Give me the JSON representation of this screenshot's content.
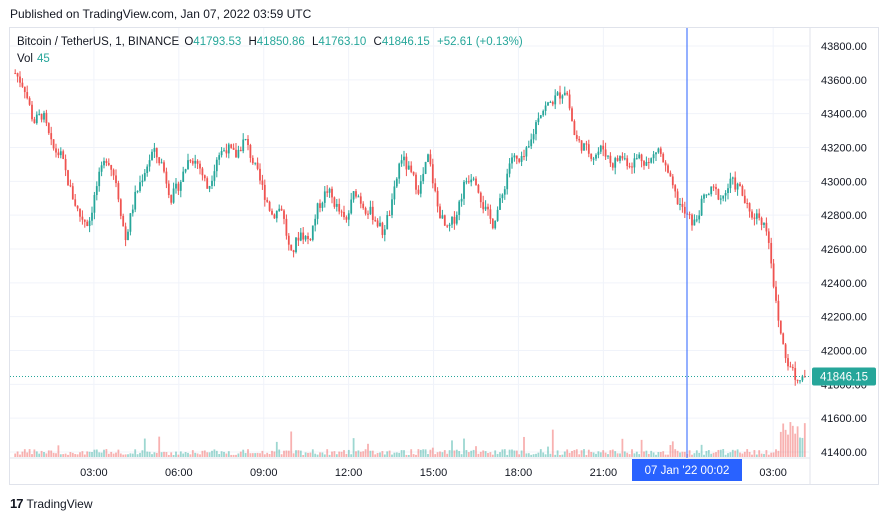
{
  "header": {
    "published": "Published on TradingView.com, Jan 07, 2022 03:59 UTC"
  },
  "legend": {
    "symbol": "Bitcoin / TetherUS, 1, BINANCE",
    "o_label": "O",
    "o_value": "41793.53",
    "h_label": "H",
    "h_value": "41850.86",
    "l_label": "L",
    "l_value": "41763.10",
    "c_label": "C",
    "c_value": "41846.15",
    "change": "+52.61 (+0.13%)",
    "vol_label": "Vol",
    "vol_value": "45"
  },
  "footer": {
    "brand": "TradingView"
  },
  "colors": {
    "up": "#26a69a",
    "down": "#ef5350",
    "grid": "#f0f3fa",
    "crosshair": "#2962ff",
    "price_tag": "#26a69a",
    "time_tag": "#2962ff",
    "axis_text": "#131722"
  },
  "chart_data": {
    "type": "candlestick",
    "ylim": [
      41350,
      43900
    ],
    "y_ticks": [
      "43800.00",
      "43600.00",
      "43400.00",
      "43200.00",
      "43000.00",
      "42800.00",
      "42600.00",
      "42400.00",
      "42200.00",
      "42000.00",
      "41800.00",
      "41600.00",
      "41400.00"
    ],
    "x_ticks": [
      "03:00",
      "06:00",
      "09:00",
      "12:00",
      "15:00",
      "18:00",
      "21:00",
      "03:00"
    ],
    "last_price": 41846.15,
    "last_price_label": "41846.15",
    "crosshair_label": "07 Jan '22   00:02",
    "series": [
      {
        "name": "Bitcoin / TetherUS",
        "approx_path": [
          [
            "00:00",
            43640
          ],
          [
            "00:20",
            43560
          ],
          [
            "00:40",
            43350
          ],
          [
            "01:00",
            43400
          ],
          [
            "01:20",
            43200
          ],
          [
            "01:40",
            43150
          ],
          [
            "02:00",
            42950
          ],
          [
            "02:20",
            42800
          ],
          [
            "02:40",
            42750
          ],
          [
            "03:00",
            43000
          ],
          [
            "03:20",
            43150
          ],
          [
            "03:40",
            43000
          ],
          [
            "04:00",
            42650
          ],
          [
            "04:20",
            42900
          ],
          [
            "04:40",
            43050
          ],
          [
            "05:00",
            43180
          ],
          [
            "05:20",
            43100
          ],
          [
            "05:40",
            42900
          ],
          [
            "06:00",
            43000
          ],
          [
            "06:20",
            43150
          ],
          [
            "06:40",
            43100
          ],
          [
            "07:00",
            42950
          ],
          [
            "07:20",
            43150
          ],
          [
            "07:40",
            43200
          ],
          [
            "08:00",
            43150
          ],
          [
            "08:20",
            43250
          ],
          [
            "08:40",
            43100
          ],
          [
            "09:00",
            42950
          ],
          [
            "09:20",
            42800
          ],
          [
            "09:40",
            42850
          ],
          [
            "10:00",
            42550
          ],
          [
            "10:20",
            42700
          ],
          [
            "10:40",
            42650
          ],
          [
            "11:00",
            42850
          ],
          [
            "11:20",
            42950
          ],
          [
            "11:40",
            42850
          ],
          [
            "12:00",
            42750
          ],
          [
            "12:20",
            42950
          ],
          [
            "12:40",
            42850
          ],
          [
            "13:00",
            42800
          ],
          [
            "13:20",
            42700
          ],
          [
            "13:40",
            42850
          ],
          [
            "14:00",
            43150
          ],
          [
            "14:20",
            43050
          ],
          [
            "14:40",
            42950
          ],
          [
            "15:00",
            43150
          ],
          [
            "15:20",
            42850
          ],
          [
            "15:40",
            42700
          ],
          [
            "16:00",
            42800
          ],
          [
            "16:20",
            43000
          ],
          [
            "16:40",
            43050
          ],
          [
            "17:00",
            42850
          ],
          [
            "17:20",
            42750
          ],
          [
            "17:40",
            42900
          ],
          [
            "18:00",
            43150
          ],
          [
            "18:20",
            43100
          ],
          [
            "18:40",
            43200
          ],
          [
            "19:00",
            43400
          ],
          [
            "19:20",
            43450
          ],
          [
            "19:40",
            43500
          ],
          [
            "20:00",
            43550
          ],
          [
            "20:20",
            43250
          ],
          [
            "20:40",
            43200
          ],
          [
            "21:00",
            43150
          ],
          [
            "21:20",
            43200
          ],
          [
            "21:40",
            43100
          ],
          [
            "22:00",
            43150
          ],
          [
            "22:20",
            43100
          ],
          [
            "22:40",
            43150
          ],
          [
            "23:00",
            43100
          ],
          [
            "23:20",
            43200
          ],
          [
            "23:40",
            43050
          ],
          [
            "00:00",
            42900
          ],
          [
            "00:20",
            42800
          ],
          [
            "00:40",
            42750
          ],
          [
            "01:00",
            42900
          ],
          [
            "01:20",
            42950
          ],
          [
            "01:40",
            42900
          ],
          [
            "02:00",
            43000
          ],
          [
            "02:20",
            42950
          ],
          [
            "02:40",
            42800
          ],
          [
            "03:00",
            42800
          ],
          [
            "03:10",
            42700
          ],
          [
            "03:20",
            42200
          ],
          [
            "03:30",
            41950
          ],
          [
            "03:40",
            41850
          ],
          [
            "03:59",
            41846
          ]
        ]
      }
    ]
  }
}
